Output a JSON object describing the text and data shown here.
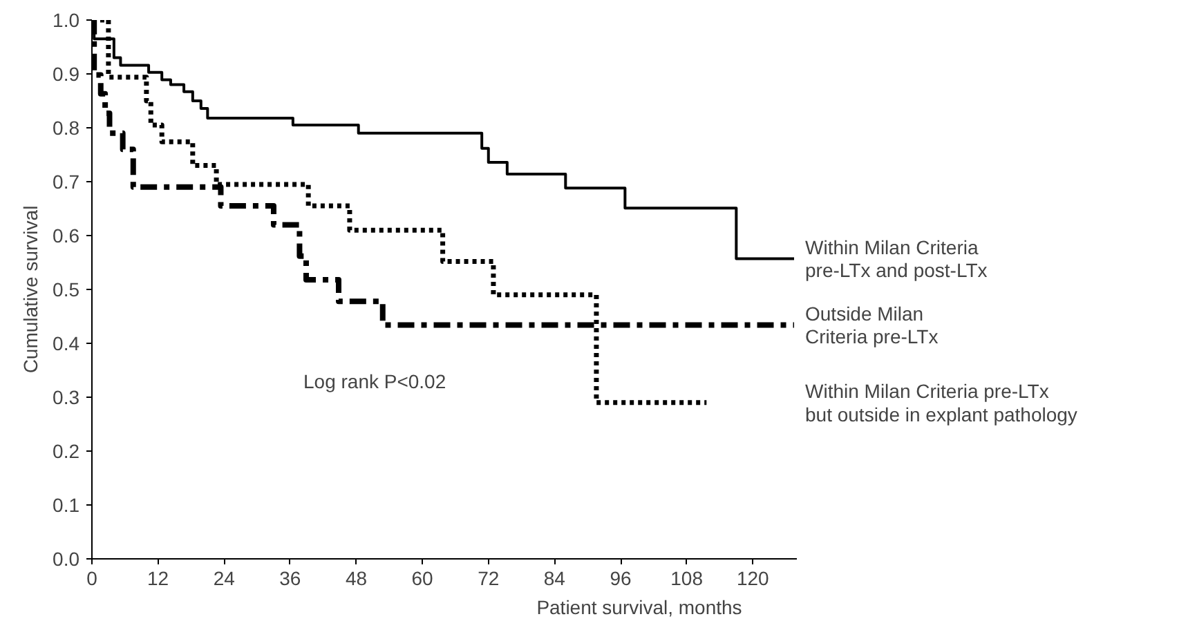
{
  "chart_data": {
    "type": "step",
    "xlabel": "Patient survival, months",
    "ylabel": "Cumulative survival",
    "xlim": [
      0,
      128
    ],
    "xticks": [
      0,
      12,
      24,
      36,
      48,
      60,
      72,
      84,
      96,
      108,
      120
    ],
    "ylim": [
      0.0,
      1.0
    ],
    "yticks": [
      {
        "value": 0,
        "label": "0.0"
      },
      0.1,
      0.2,
      0.3,
      0.4,
      0.5,
      0.6,
      0.7,
      0.8,
      0.9,
      {
        "value": 1,
        "label": "1.0"
      }
    ],
    "grid": false,
    "annotations": [
      "Log rank P<0.02"
    ],
    "series": [
      {
        "name": "Within Milan Criteria\npre-LTx and post-LTx",
        "color": "#000000",
        "line_style": "solid",
        "x": [
          0,
          0.4,
          4,
          5.2,
          10.3,
          12.7,
          14.3,
          16.7,
          18.3,
          19.8,
          21,
          36.5,
          48.4,
          70.8,
          72,
          75.4,
          86,
          96.8,
          117,
          127.5
        ],
        "values": [
          1.0,
          0.965,
          0.93,
          0.916,
          0.903,
          0.889,
          0.88,
          0.867,
          0.85,
          0.836,
          0.818,
          0.805,
          0.79,
          0.762,
          0.736,
          0.714,
          0.688,
          0.651,
          0.557,
          0.557
        ]
      },
      {
        "name": "Outside Milan\nCriteria pre-LTx",
        "color": "#000000",
        "line_style": "dashdot",
        "x": [
          0,
          0.4,
          1.6,
          2.4,
          3.2,
          5.6,
          7.5,
          23.4,
          33,
          37.7,
          38.9,
          44.8,
          52.8,
          127.5
        ],
        "values": [
          1.0,
          0.898,
          0.863,
          0.827,
          0.79,
          0.76,
          0.69,
          0.655,
          0.62,
          0.562,
          0.518,
          0.478,
          0.434,
          0.434
        ]
      },
      {
        "name": "Within Milan Criteria pre-LTx\nbut outside in explant pathology",
        "color": "#000000",
        "line_style": "dotted",
        "x": [
          0,
          3,
          9.9,
          10.7,
          12.7,
          18.3,
          22.6,
          39.3,
          46.8,
          63.7,
          72.9,
          91.6,
          111.6
        ],
        "values": [
          1.0,
          0.894,
          0.85,
          0.805,
          0.774,
          0.73,
          0.695,
          0.655,
          0.61,
          0.552,
          0.49,
          0.29,
          0.29
        ]
      }
    ]
  }
}
